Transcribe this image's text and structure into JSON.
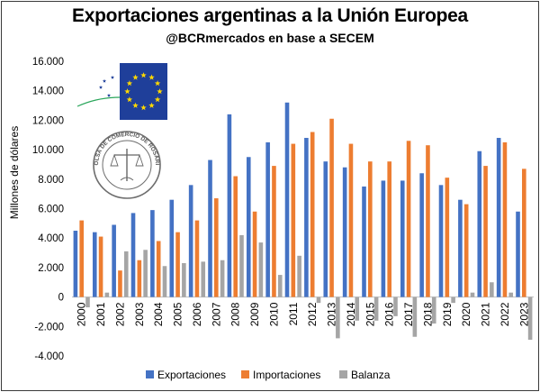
{
  "header": {
    "title": "Exportaciones argentinas a la Unión Europea",
    "subtitle": "@BCRmercados en base a SECEM"
  },
  "logos": {
    "eu_flag_icon": "eu-flag-icon",
    "seal": {
      "icon": "bolsa-comercio-rosario-seal-icon",
      "text": "BOLSA DE COMERCIO DE ROSARIO"
    }
  },
  "colors": {
    "Exportaciones": "#4472C4",
    "Importaciones": "#ED7D31",
    "Balanza": "#A5A5A5",
    "flag_blue": "#1f3f9a",
    "flag_star": "#ffd800"
  },
  "chart_data": {
    "type": "bar",
    "title": "Exportaciones argentinas a la Unión Europea",
    "subtitle": "@BCRmercados en base a SECEM",
    "ylabel": "Millones de dólares",
    "xlabel": "",
    "ylim": [
      -4000,
      16000
    ],
    "yticks": [
      -4000,
      -2000,
      0,
      2000,
      4000,
      6000,
      8000,
      10000,
      12000,
      14000,
      16000
    ],
    "ytick_labels": [
      "-4.000",
      "-2.000",
      "0",
      "2.000",
      "4.000",
      "6.000",
      "8.000",
      "10.000",
      "12.000",
      "14.000",
      "16.000"
    ],
    "grid": false,
    "legend": "bottom",
    "categories": [
      "2000",
      "2001",
      "2002",
      "2003",
      "2004",
      "2005",
      "2006",
      "2007",
      "2008",
      "2009",
      "2010",
      "2011",
      "2012",
      "2013",
      "2014",
      "2015",
      "2016",
      "2017",
      "2018",
      "2019",
      "2020",
      "2021",
      "2022",
      "2023"
    ],
    "series": [
      {
        "name": "Exportaciones",
        "values": [
          4500,
          4400,
          4900,
          5700,
          5900,
          6600,
          7600,
          9300,
          12400,
          9500,
          10500,
          13200,
          10800,
          9200,
          8800,
          7500,
          7900,
          7900,
          8400,
          7600,
          6600,
          9900,
          10800,
          5800
        ]
      },
      {
        "name": "Importaciones",
        "values": [
          5200,
          4100,
          1800,
          2500,
          3800,
          4400,
          5200,
          6700,
          8200,
          5800,
          8900,
          10400,
          11200,
          12100,
          10400,
          9200,
          9200,
          10600,
          10300,
          8100,
          6300,
          8900,
          10500,
          8700
        ]
      },
      {
        "name": "Balanza",
        "values": [
          -700,
          300,
          3100,
          3200,
          2100,
          2300,
          2400,
          2500,
          4200,
          3700,
          1500,
          2800,
          -400,
          -2800,
          -1600,
          -1600,
          -1300,
          -2700,
          -1800,
          -400,
          300,
          1000,
          300,
          -2900
        ]
      }
    ]
  }
}
